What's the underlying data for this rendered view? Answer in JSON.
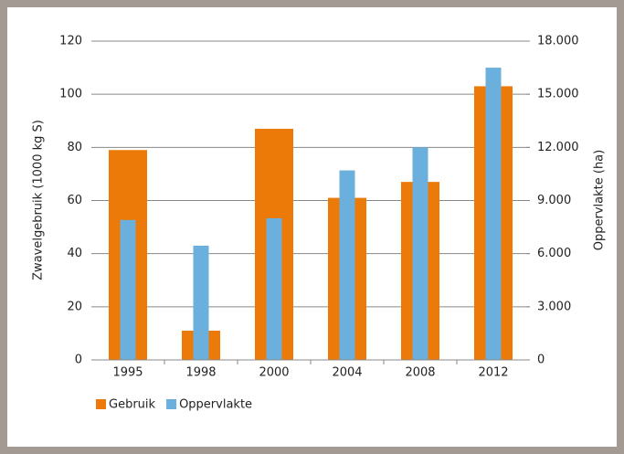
{
  "chart_data": {
    "type": "bar",
    "ylabel": "Zwavelgebruik (1000 kg S)",
    "y2label": "Oppervlakte (ha)",
    "categories": [
      "1995",
      "1998",
      "2000",
      "2004",
      "2008",
      "2012"
    ],
    "series": [
      {
        "name": "Gebruik",
        "color": "#ec7a08",
        "values": [
          79,
          11,
          87,
          61,
          67,
          103
        ]
      },
      {
        "name": "Oppervlakte",
        "color": "#6bb0dc",
        "axis": "y2",
        "values": [
          7900,
          6450,
          8000,
          10700,
          12000,
          16500
        ]
      }
    ],
    "ylim": [
      0,
      120
    ],
    "yticks": [
      0,
      20,
      40,
      60,
      80,
      100,
      120
    ],
    "y2lim": [
      0,
      18000
    ],
    "y2ticks": [
      0,
      {
        "value": 3000,
        "label": "3.000"
      },
      {
        "value": 6000,
        "label": "6.000"
      },
      {
        "value": 9000,
        "label": "9.000"
      },
      {
        "value": 12000,
        "label": "12.000"
      },
      {
        "value": 15000,
        "label": "15.000"
      },
      {
        "value": 18000,
        "label": "18.000"
      }
    ],
    "grid": true,
    "legend": "bottom-left"
  }
}
